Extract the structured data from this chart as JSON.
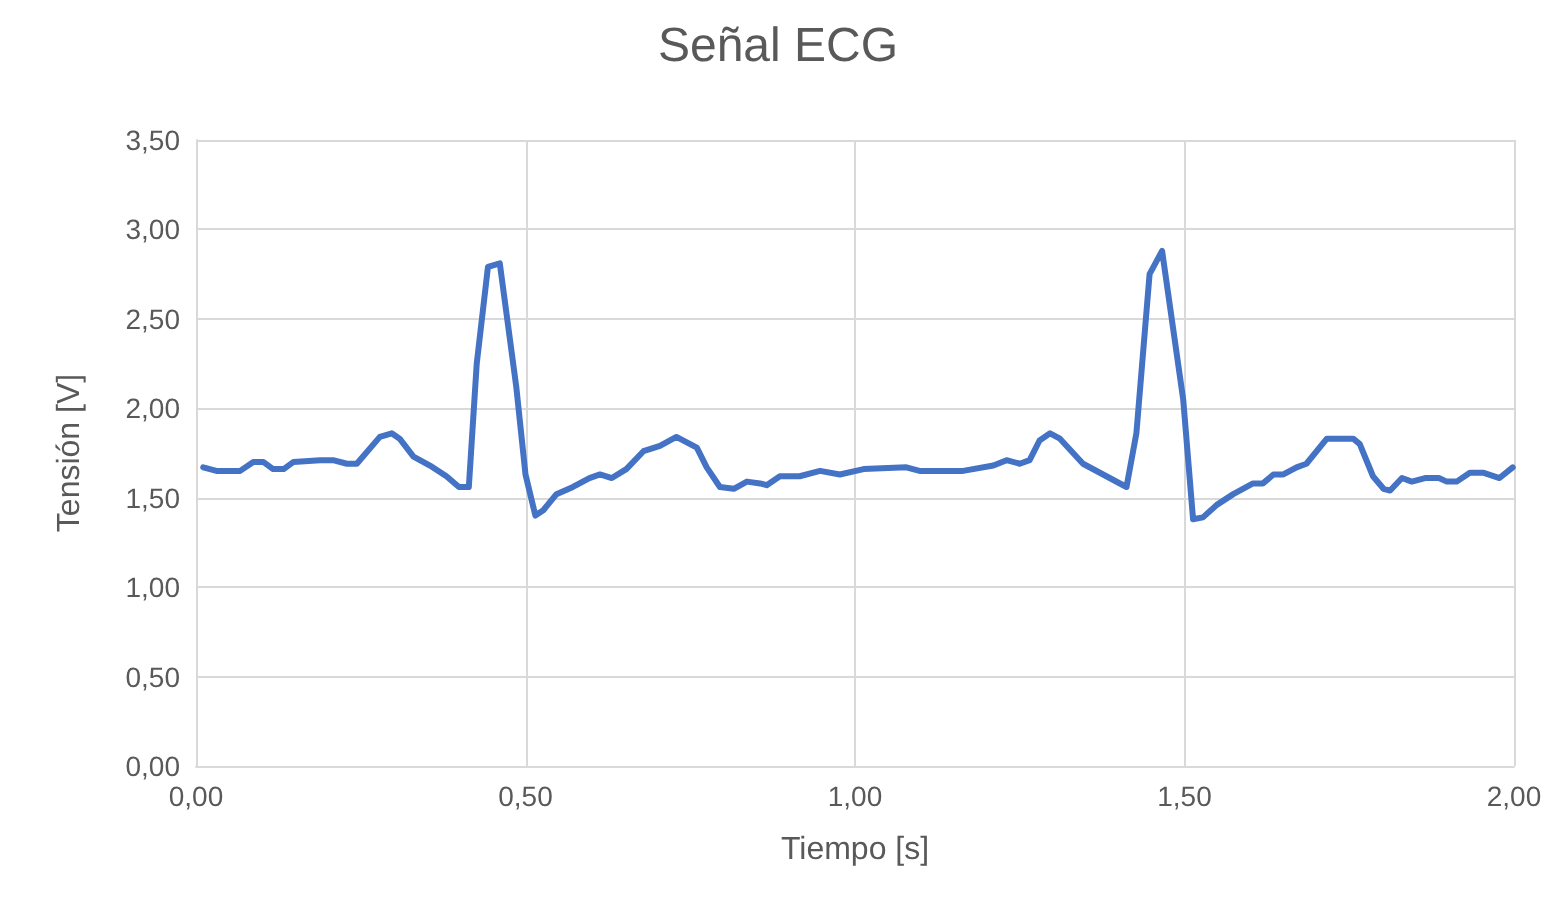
{
  "chart_data": {
    "type": "line",
    "title": "Señal ECG",
    "xlabel": "Tiempo [s]",
    "ylabel": "Tensión [V]",
    "series": [
      {
        "color": "#4472c4",
        "x": [
          0.011,
          0.031,
          0.067,
          0.087,
          0.102,
          0.117,
          0.133,
          0.148,
          0.188,
          0.208,
          0.229,
          0.244,
          0.279,
          0.297,
          0.309,
          0.33,
          0.355,
          0.38,
          0.399,
          0.414,
          0.426,
          0.443,
          0.461,
          0.486,
          0.5,
          0.515,
          0.527,
          0.547,
          0.572,
          0.597,
          0.613,
          0.631,
          0.653,
          0.679,
          0.704,
          0.729,
          0.76,
          0.775,
          0.795,
          0.816,
          0.836,
          0.856,
          0.866,
          0.886,
          0.916,
          0.947,
          0.977,
          1.013,
          1.078,
          1.098,
          1.164,
          1.21,
          1.23,
          1.25,
          1.265,
          1.28,
          1.296,
          1.311,
          1.346,
          1.412,
          1.427,
          1.447,
          1.466,
          1.498,
          1.513,
          1.528,
          1.549,
          1.574,
          1.604,
          1.619,
          1.635,
          1.65,
          1.67,
          1.685,
          1.716,
          1.756,
          1.766,
          1.786,
          1.802,
          1.812,
          1.83,
          1.845,
          1.865,
          1.886,
          1.898,
          1.913,
          1.933,
          1.953,
          1.978,
          1.998
        ],
        "values": [
          1.67,
          1.65,
          1.65,
          1.7,
          1.7,
          1.66,
          1.66,
          1.7,
          1.71,
          1.71,
          1.69,
          1.69,
          1.84,
          1.86,
          1.83,
          1.73,
          1.68,
          1.62,
          1.56,
          1.56,
          2.25,
          2.79,
          2.81,
          2.12,
          1.63,
          1.4,
          1.43,
          1.52,
          1.56,
          1.61,
          1.63,
          1.61,
          1.66,
          1.76,
          1.79,
          1.84,
          1.78,
          1.67,
          1.56,
          1.55,
          1.59,
          1.58,
          1.57,
          1.62,
          1.62,
          1.65,
          1.63,
          1.66,
          1.67,
          1.65,
          1.65,
          1.68,
          1.71,
          1.69,
          1.71,
          1.82,
          1.86,
          1.83,
          1.69,
          1.56,
          1.86,
          2.75,
          2.88,
          2.05,
          1.38,
          1.39,
          1.46,
          1.52,
          1.58,
          1.58,
          1.63,
          1.63,
          1.67,
          1.69,
          1.83,
          1.83,
          1.8,
          1.62,
          1.55,
          1.54,
          1.61,
          1.59,
          1.61,
          1.61,
          1.59,
          1.59,
          1.64,
          1.64,
          1.61,
          1.67
        ]
      }
    ],
    "xlim": [
      0,
      2
    ],
    "xticks": [
      {
        "value": 0,
        "label": "0,00"
      },
      {
        "value": 0.5,
        "label": "0,50"
      },
      {
        "value": 1,
        "label": "1,00"
      },
      {
        "value": 1.5,
        "label": "1,50"
      },
      {
        "value": 2,
        "label": "2,00"
      }
    ],
    "ylim": [
      0,
      3.5
    ],
    "yticks": [
      {
        "value": 0,
        "label": "0,00"
      },
      {
        "value": 0.5,
        "label": "0,50"
      },
      {
        "value": 1,
        "label": "1,00"
      },
      {
        "value": 1.5,
        "label": "1,50"
      },
      {
        "value": 2,
        "label": "2,00"
      },
      {
        "value": 2.5,
        "label": "2,50"
      },
      {
        "value": 3,
        "label": "3,00"
      },
      {
        "value": 3.5,
        "label": "3,50"
      }
    ],
    "grid": true,
    "marker": "none",
    "line_style": "solid"
  }
}
